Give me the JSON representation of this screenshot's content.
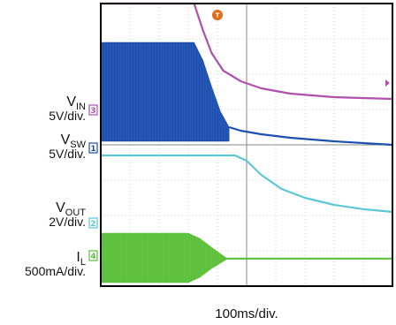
{
  "chart_data": {
    "type": "line",
    "title": "",
    "xlabel": "100ms/div.",
    "ylabel": "",
    "grid": true,
    "x_divisions": 10,
    "y_divisions": 8,
    "trigger_marker": "T",
    "channels": [
      {
        "id": "V_IN",
        "label_main": "V",
        "label_sub": "IN",
        "scale": "5V/div.",
        "channel_number": "3",
        "color": "#b04fae",
        "x_div": [
          0,
          3.2,
          3.5,
          3.8,
          4.2,
          4.8,
          5.5,
          6.5,
          8.0,
          10
        ],
        "y_div": [
          0.0,
          0.0,
          0.75,
          1.4,
          1.9,
          2.2,
          2.4,
          2.55,
          2.65,
          2.7
        ]
      },
      {
        "id": "V_SW",
        "label_main": "V",
        "label_sub": "SW",
        "scale": "5V/div.",
        "channel_number": "1",
        "color": "#1c4fb0",
        "band_x_div": [
          0,
          3.2,
          3.5,
          3.8,
          4.1,
          4.4
        ],
        "band_top_div": [
          1.1,
          1.1,
          1.6,
          2.35,
          3.05,
          3.5
        ],
        "band_bottom_div": [
          3.9,
          3.9,
          3.9,
          3.9,
          3.9,
          3.9
        ],
        "x_div": [
          4.4,
          4.8,
          5.5,
          6.5,
          8.0,
          10
        ],
        "y_div": [
          3.5,
          3.6,
          3.7,
          3.8,
          3.9,
          4.0
        ]
      },
      {
        "id": "V_OUT",
        "label_main": "V",
        "label_sub": "OUT",
        "scale": "2V/div.",
        "channel_number": "2",
        "color": "#5bc8d8",
        "x_div": [
          0,
          4.6,
          5.0,
          5.5,
          6.2,
          7.0,
          8.0,
          9.0,
          10
        ],
        "y_div": [
          4.3,
          4.3,
          4.45,
          4.85,
          5.25,
          5.5,
          5.7,
          5.82,
          5.9
        ]
      },
      {
        "id": "I_L",
        "label_main": "I",
        "label_sub": "L",
        "scale": "500mA/div.",
        "channel_number": "4",
        "color": "#5bbf3a",
        "band_x_div": [
          0,
          3.0,
          3.4,
          3.8,
          4.3
        ],
        "band_top_div": [
          6.5,
          6.5,
          6.65,
          6.9,
          7.2
        ],
        "band_bottom_div": [
          7.9,
          7.9,
          7.75,
          7.5,
          7.25
        ],
        "x_div": [
          4.3,
          10
        ],
        "y_div": [
          7.22,
          7.22
        ]
      }
    ]
  }
}
